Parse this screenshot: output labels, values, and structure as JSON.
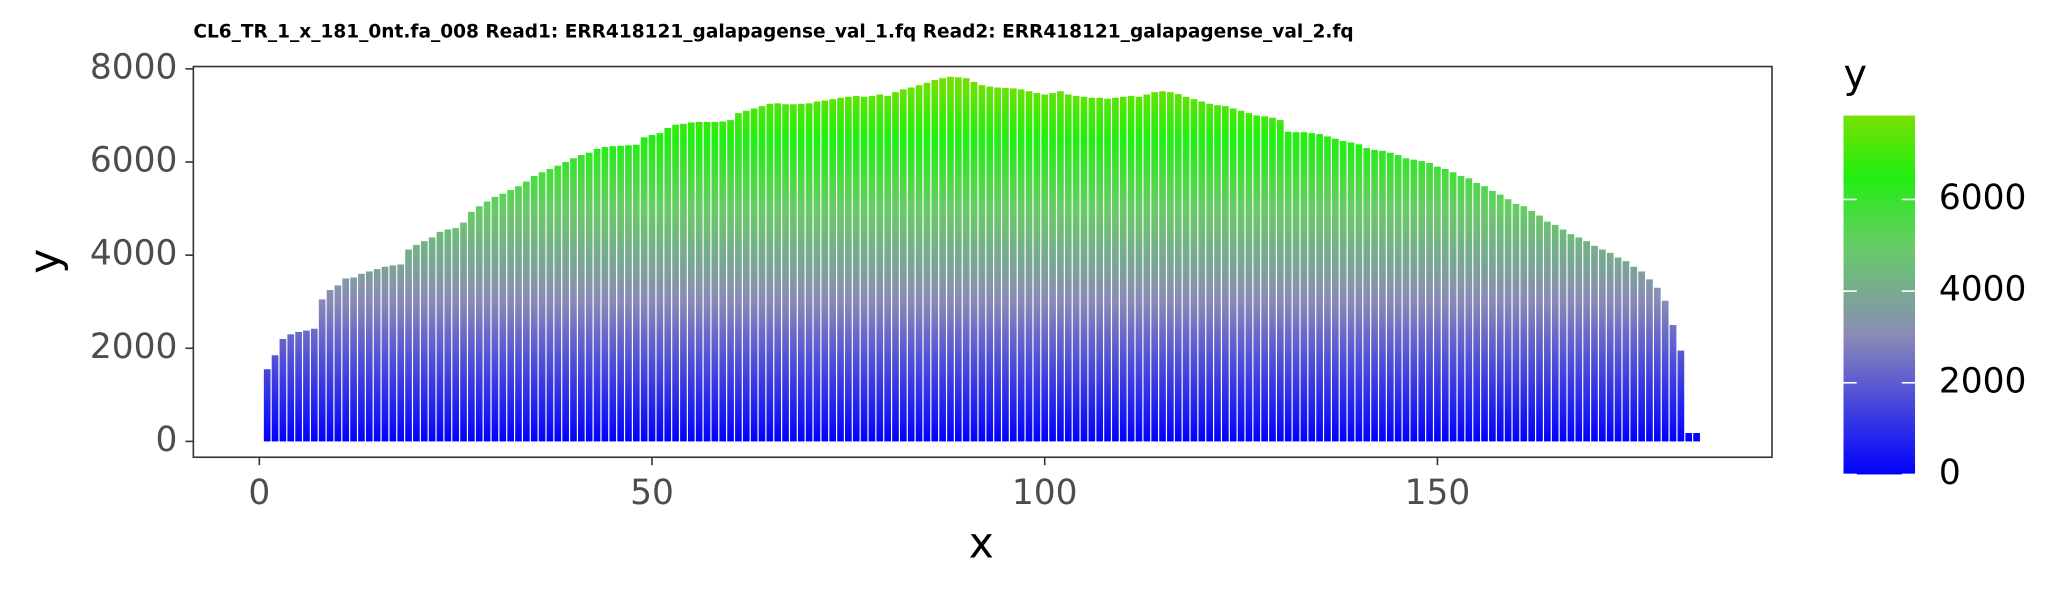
{
  "chart_data": {
    "type": "bar",
    "title": "CL6_TR_1_x_181_0nt.fa_008 Read1: ERR418121_galapagense_val_1.fq Read2: ERR418121_galapagense_val_2.fq",
    "x_label": "x",
    "y_label": "y",
    "legend_title": "y",
    "x": [
      1,
      2,
      3,
      4,
      5,
      6,
      7,
      8,
      9,
      10,
      11,
      12,
      13,
      14,
      15,
      16,
      17,
      18,
      19,
      20,
      21,
      22,
      23,
      24,
      25,
      26,
      27,
      28,
      29,
      30,
      31,
      32,
      33,
      34,
      35,
      36,
      37,
      38,
      39,
      40,
      41,
      42,
      43,
      44,
      45,
      46,
      47,
      48,
      49,
      50,
      51,
      52,
      53,
      54,
      55,
      56,
      57,
      58,
      59,
      60,
      61,
      62,
      63,
      64,
      65,
      66,
      67,
      68,
      69,
      70,
      71,
      72,
      73,
      74,
      75,
      76,
      77,
      78,
      79,
      80,
      81,
      82,
      83,
      84,
      85,
      86,
      87,
      88,
      89,
      90,
      91,
      92,
      93,
      94,
      95,
      96,
      97,
      98,
      99,
      100,
      101,
      102,
      103,
      104,
      105,
      106,
      107,
      108,
      109,
      110,
      111,
      112,
      113,
      114,
      115,
      116,
      117,
      118,
      119,
      120,
      121,
      122,
      123,
      124,
      125,
      126,
      127,
      128,
      129,
      130,
      131,
      132,
      133,
      134,
      135,
      136,
      137,
      138,
      139,
      140,
      141,
      142,
      143,
      144,
      145,
      146,
      147,
      148,
      149,
      150,
      151,
      152,
      153,
      154,
      155,
      156,
      157,
      158,
      159,
      160,
      161,
      162,
      163,
      164,
      165,
      166,
      167,
      168,
      169,
      170,
      171,
      172,
      173,
      174,
      175,
      176,
      177,
      178,
      179,
      180,
      181,
      182,
      183
    ],
    "values": [
      1550,
      1850,
      2200,
      2300,
      2350,
      2380,
      2420,
      3050,
      3250,
      3350,
      3500,
      3520,
      3600,
      3650,
      3700,
      3750,
      3780,
      3800,
      4120,
      4220,
      4300,
      4380,
      4500,
      4550,
      4580,
      4700,
      4930,
      5050,
      5150,
      5250,
      5320,
      5400,
      5480,
      5580,
      5700,
      5780,
      5850,
      5920,
      6000,
      6080,
      6150,
      6200,
      6280,
      6320,
      6340,
      6350,
      6360,
      6370,
      6530,
      6580,
      6620,
      6730,
      6800,
      6820,
      6850,
      6860,
      6860,
      6860,
      6870,
      6900,
      7050,
      7100,
      7150,
      7200,
      7250,
      7260,
      7240,
      7240,
      7250,
      7260,
      7300,
      7320,
      7350,
      7380,
      7400,
      7420,
      7400,
      7420,
      7450,
      7420,
      7500,
      7560,
      7600,
      7650,
      7700,
      7760,
      7800,
      7830,
      7820,
      7800,
      7720,
      7650,
      7620,
      7600,
      7590,
      7580,
      7560,
      7520,
      7480,
      7450,
      7480,
      7520,
      7450,
      7420,
      7400,
      7380,
      7380,
      7360,
      7380,
      7400,
      7420,
      7400,
      7450,
      7500,
      7520,
      7500,
      7460,
      7400,
      7350,
      7300,
      7250,
      7220,
      7200,
      7150,
      7100,
      7050,
      7000,
      6980,
      6950,
      6900,
      6650,
      6640,
      6640,
      6620,
      6600,
      6550,
      6500,
      6450,
      6420,
      6380,
      6300,
      6260,
      6240,
      6200,
      6150,
      6080,
      6050,
      6020,
      5980,
      5900,
      5850,
      5780,
      5700,
      5650,
      5550,
      5480,
      5380,
      5300,
      5200,
      5100,
      5050,
      4950,
      4850,
      4720,
      4650,
      4550,
      4450,
      4380,
      4300,
      4200,
      4120,
      4050,
      3950,
      3870,
      3750,
      3650,
      3480,
      3300,
      3020,
      2500,
      1950,
      180,
      180
    ],
    "xlim": [
      -8.4,
      192.6
    ],
    "xticks": [
      0,
      50,
      100,
      150
    ],
    "ylim": [
      -340,
      8050
    ],
    "yticks": [
      0,
      2000,
      4000,
      6000,
      8000
    ],
    "legend_ticks": [
      0,
      2000,
      4000,
      6000
    ],
    "color_scale": [
      {
        "value": 0,
        "color": "#0000ff"
      },
      {
        "value": 3000,
        "color": "#8a8ab8"
      },
      {
        "value": 5000,
        "color": "#66cc66"
      },
      {
        "value": 6500,
        "color": "#22ee11"
      },
      {
        "value": 7830,
        "color": "#77e000"
      }
    ],
    "grid": false
  }
}
